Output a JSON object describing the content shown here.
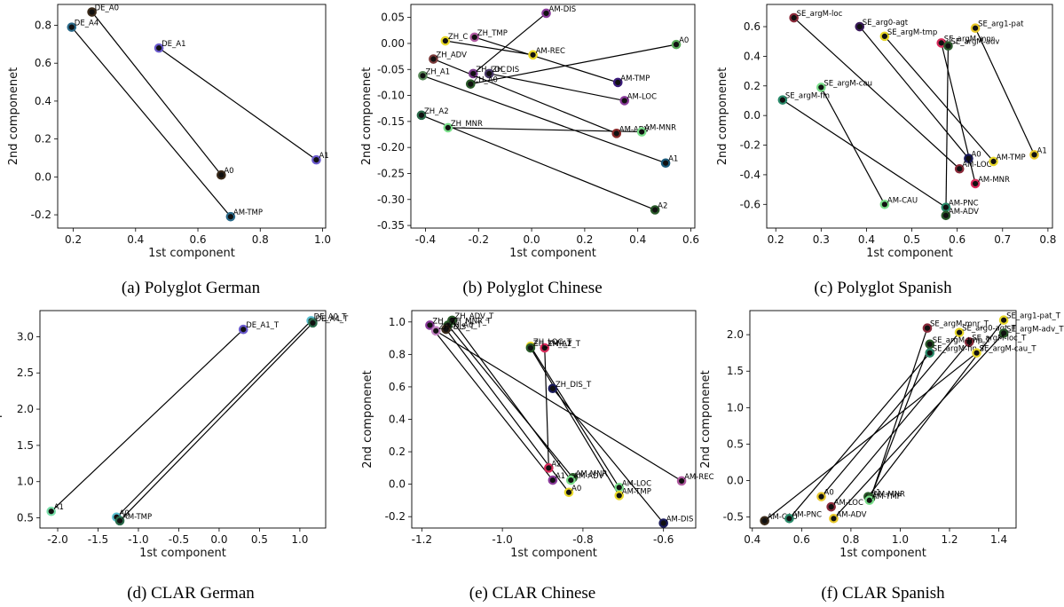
{
  "chart_data": [
    {
      "type": "scatter",
      "caption": "(a) Polyglot German",
      "xlabel": "1st component",
      "ylabel": "2nd componenet",
      "xlim": [
        0.15,
        1.01
      ],
      "ylim": [
        -0.27,
        0.91
      ],
      "xticks": [
        "0.2",
        "0.4",
        "0.6",
        "0.8",
        "1.0"
      ],
      "yticks": [
        "-0.2",
        "0.0",
        "0.2",
        "0.4",
        "0.6",
        "0.8"
      ],
      "points": [
        {
          "label": "DE_A0",
          "x": 0.26,
          "y": 0.87,
          "color": "#3a2a1a"
        },
        {
          "label": "DE_A4",
          "x": 0.195,
          "y": 0.79,
          "color": "#2a6a8a"
        },
        {
          "label": "DE_A1",
          "x": 0.475,
          "y": 0.68,
          "color": "#6a5acd"
        },
        {
          "label": "A0",
          "x": 0.675,
          "y": 0.01,
          "color": "#3a2a1a"
        },
        {
          "label": "A1",
          "x": 0.98,
          "y": 0.09,
          "color": "#6a5acd"
        },
        {
          "label": "AM-TMP",
          "x": 0.705,
          "y": -0.21,
          "color": "#2a6a8a"
        }
      ],
      "links": [
        [
          "DE_A0",
          "A0"
        ],
        [
          "DE_A4",
          "AM-TMP"
        ],
        [
          "DE_A1",
          "A1"
        ]
      ]
    },
    {
      "type": "scatter",
      "caption": "(b) Polyglot Chinese",
      "xlabel": "1st component",
      "ylabel": "2nd componenet",
      "xlim": [
        -0.455,
        0.615
      ],
      "ylim": [
        -0.355,
        0.075
      ],
      "xticks": [
        "-0.4",
        "-0.2",
        "0.0",
        "0.2",
        "0.4",
        "0.6"
      ],
      "yticks": [
        "-0.35",
        "-0.30",
        "-0.25",
        "-0.20",
        "-0.15",
        "-0.10",
        "-0.05",
        "0.00",
        "0.05"
      ],
      "points": [
        {
          "label": "AM-DIS",
          "x": 0.055,
          "y": 0.058,
          "color": "#8a3a9a"
        },
        {
          "label": "ZH_C",
          "x": -0.325,
          "y": 0.005,
          "color": "#e8d82a"
        },
        {
          "label": "ZH_TMP",
          "x": -0.215,
          "y": 0.012,
          "color": "#b05aa0"
        },
        {
          "label": "AM-REC",
          "x": 0.005,
          "y": -0.022,
          "color": "#e8d82a"
        },
        {
          "label": "A0",
          "x": 0.545,
          "y": -0.002,
          "color": "#5aaa5a"
        },
        {
          "label": "ZH_ADV",
          "x": -0.37,
          "y": -0.03,
          "color": "#7a3a3a"
        },
        {
          "label": "ZH_LOC",
          "x": -0.22,
          "y": -0.058,
          "color": "#7a3a8a"
        },
        {
          "label": "ZH_DIS",
          "x": -0.16,
          "y": -0.058,
          "color": "#4a3a6a"
        },
        {
          "label": "ZH_A1",
          "x": -0.41,
          "y": -0.062,
          "color": "#5a8a5a"
        },
        {
          "label": "ZH_A0",
          "x": -0.23,
          "y": -0.078,
          "color": "#2a5a2a"
        },
        {
          "label": "AM-TMP",
          "x": 0.325,
          "y": -0.075,
          "color": "#3a1a7a"
        },
        {
          "label": "AM-LOC",
          "x": 0.35,
          "y": -0.11,
          "color": "#8a3a9a"
        },
        {
          "label": "ZH_A2",
          "x": -0.415,
          "y": -0.138,
          "color": "#2a6a4a"
        },
        {
          "label": "ZH_MNR",
          "x": -0.315,
          "y": -0.162,
          "color": "#7adf8a"
        },
        {
          "label": "AM-ADV",
          "x": 0.32,
          "y": -0.173,
          "color": "#8a2a2a"
        },
        {
          "label": "AM-MNR",
          "x": 0.415,
          "y": -0.17,
          "color": "#7adf8a"
        },
        {
          "label": "A1",
          "x": 0.505,
          "y": -0.23,
          "color": "#1a5a7a"
        },
        {
          "label": "A2",
          "x": 0.465,
          "y": -0.32,
          "color": "#2a5a2a"
        }
      ],
      "links": [
        [
          "ZH_C",
          "AM-REC"
        ],
        [
          "ZH_TMP",
          "AM-TMP"
        ],
        [
          "ZH_ADV",
          "AM-ADV"
        ],
        [
          "ZH_LOC",
          "AM-DIS"
        ],
        [
          "ZH_DIS",
          "AM-LOC"
        ],
        [
          "ZH_A1",
          "A1"
        ],
        [
          "ZH_A0",
          "A0"
        ],
        [
          "ZH_A2",
          "A2"
        ],
        [
          "ZH_MNR",
          "AM-MNR"
        ]
      ]
    },
    {
      "type": "scatter",
      "caption": "(c) Polyglot Spanish",
      "xlabel": "1st component",
      "ylabel": "2nd componenet",
      "xlim": [
        0.18,
        0.81
      ],
      "ylim": [
        -0.76,
        0.75
      ],
      "xticks": [
        "0.2",
        "0.3",
        "0.4",
        "0.5",
        "0.6",
        "0.7",
        "0.8"
      ],
      "yticks": [
        "-0.6",
        "-0.4",
        "-0.2",
        "0.0",
        "0.2",
        "0.4",
        "0.6"
      ],
      "points": [
        {
          "label": "SE_argM-loc",
          "x": 0.24,
          "y": 0.66,
          "color": "#8a2a3a"
        },
        {
          "label": "SE_arg0-agt",
          "x": 0.385,
          "y": 0.6,
          "color": "#3a1a5a"
        },
        {
          "label": "SE_argM-tmp",
          "x": 0.44,
          "y": 0.535,
          "color": "#e8d82a"
        },
        {
          "label": "SE_arg1-pat",
          "x": 0.64,
          "y": 0.59,
          "color": "#e8c82a"
        },
        {
          "label": "SE_argM-mnr",
          "x": 0.565,
          "y": 0.49,
          "color": "#d82a5a"
        },
        {
          "label": "SE_argM-adv",
          "x": 0.58,
          "y": 0.47,
          "color": "#2a5a2a"
        },
        {
          "label": "SE_argM-cau",
          "x": 0.3,
          "y": 0.19,
          "color": "#7adf8a"
        },
        {
          "label": "SE_argM-fin",
          "x": 0.215,
          "y": 0.105,
          "color": "#2a8a6a"
        },
        {
          "label": "A0",
          "x": 0.625,
          "y": -0.29,
          "color": "#1a1a5a"
        },
        {
          "label": "AM-LOC",
          "x": 0.605,
          "y": -0.36,
          "color": "#8a2a3a"
        },
        {
          "label": "AM-TMP",
          "x": 0.68,
          "y": -0.31,
          "color": "#e8d82a"
        },
        {
          "label": "A1",
          "x": 0.77,
          "y": -0.265,
          "color": "#e8c82a"
        },
        {
          "label": "AM-MNR",
          "x": 0.64,
          "y": -0.46,
          "color": "#d82a5a"
        },
        {
          "label": "AM-CAU",
          "x": 0.44,
          "y": -0.6,
          "color": "#7adf8a"
        },
        {
          "label": "AM-PNC",
          "x": 0.575,
          "y": -0.62,
          "color": "#2a8a6a"
        },
        {
          "label": "AM-ADV",
          "x": 0.575,
          "y": -0.675,
          "color": "#2a5a2a"
        }
      ],
      "links": [
        [
          "SE_argM-loc",
          "AM-LOC"
        ],
        [
          "SE_arg0-agt",
          "A0"
        ],
        [
          "SE_argM-tmp",
          "AM-TMP"
        ],
        [
          "SE_arg1-pat",
          "A1"
        ],
        [
          "SE_argM-mnr",
          "AM-MNR"
        ],
        [
          "SE_argM-adv",
          "AM-ADV"
        ],
        [
          "SE_argM-cau",
          "AM-CAU"
        ],
        [
          "SE_argM-fin",
          "AM-PNC"
        ]
      ]
    },
    {
      "type": "scatter",
      "caption": "(d) CLAR German",
      "xlabel": "1st component",
      "ylabel": "2nd componenet",
      "xlim": [
        -2.22,
        1.32
      ],
      "ylim": [
        0.36,
        3.36
      ],
      "xticks": [
        "-2.0",
        "-1.5",
        "-1.0",
        "-0.5",
        "0.0",
        "0.5",
        "1.0"
      ],
      "yticks": [
        "0.5",
        "1.0",
        "1.5",
        "2.0",
        "2.5",
        "3.0"
      ],
      "points": [
        {
          "label": "DE_A1_T",
          "x": 0.3,
          "y": 3.1,
          "color": "#6a5acd"
        },
        {
          "label": "DE_A0_T",
          "x": 1.14,
          "y": 3.22,
          "color": "#5abfcf"
        },
        {
          "label": "DE_A4_T",
          "x": 1.16,
          "y": 3.19,
          "color": "#2a6a4a"
        },
        {
          "label": "A1",
          "x": -2.08,
          "y": 0.59,
          "color": "#7adfaa"
        },
        {
          "label": "A0",
          "x": -1.27,
          "y": 0.51,
          "color": "#5abfcf"
        },
        {
          "label": "AM-TMP",
          "x": -1.23,
          "y": 0.46,
          "color": "#2a6a4a"
        }
      ],
      "links": [
        [
          "DE_A1_T",
          "A1"
        ],
        [
          "DE_A0_T",
          "A0"
        ],
        [
          "DE_A4_T",
          "AM-TMP"
        ]
      ]
    },
    {
      "type": "scatter",
      "caption": "(e) CLAR Chinese",
      "xlabel": "1st component",
      "ylabel": "2nd componenet",
      "xlim": [
        -1.225,
        -0.52
      ],
      "ylim": [
        -0.27,
        1.07
      ],
      "xticks": [
        "-1.2",
        "-1.0",
        "-0.8",
        "-0.6"
      ],
      "yticks": [
        "-0.2",
        "0.0",
        "0.2",
        "0.4",
        "0.6",
        "0.8",
        "1.0"
      ],
      "points": [
        {
          "label": "ZH_A",
          "x": -1.18,
          "y": 0.98,
          "color": "#8a3a9a"
        },
        {
          "label": "ZH_ADV_T",
          "x": -1.125,
          "y": 1.01,
          "color": "#2a5a2a"
        },
        {
          "label": "ZH_MNR_T",
          "x": -1.135,
          "y": 0.98,
          "color": "#2a5a2a"
        },
        {
          "label": "ZH_A0_T",
          "x": -1.14,
          "y": 0.955,
          "color": "#3a2a1a"
        },
        {
          "label": "ZH_DIS_T",
          "x": -1.165,
          "y": 0.945,
          "color": "#c080c0"
        },
        {
          "label": "ZH_LOC_T",
          "x": -0.93,
          "y": 0.85,
          "color": "#e8d82a"
        },
        {
          "label": "ZH_A2_T",
          "x": -0.895,
          "y": 0.84,
          "color": "#d82a5a"
        },
        {
          "label": "ZH_TMP_T",
          "x": -0.93,
          "y": 0.84,
          "color": "#2a5a2a"
        },
        {
          "label": "ZH_DIS_T",
          "x": -0.875,
          "y": 0.59,
          "color": "#1a1a5a"
        },
        {
          "label": "A2",
          "x": -0.885,
          "y": 0.1,
          "color": "#d82a5a"
        },
        {
          "label": "AM-MNR",
          "x": -0.825,
          "y": 0.04,
          "color": "#2a5a2a"
        },
        {
          "label": "AM-ADV",
          "x": -0.83,
          "y": 0.025,
          "color": "#7adf8a"
        },
        {
          "label": "A1",
          "x": -0.875,
          "y": 0.025,
          "color": "#8a3a9a"
        },
        {
          "label": "A0",
          "x": -0.835,
          "y": -0.05,
          "color": "#e8d82a"
        },
        {
          "label": "AM-LOC",
          "x": -0.71,
          "y": -0.02,
          "color": "#7adf8a"
        },
        {
          "label": "AM-TMP",
          "x": -0.71,
          "y": -0.07,
          "color": "#e8d82a"
        },
        {
          "label": "AM-REC",
          "x": -0.555,
          "y": 0.02,
          "color": "#b05aa0"
        },
        {
          "label": "AM-DIS",
          "x": -0.6,
          "y": -0.24,
          "color": "#1a1a5a"
        }
      ],
      "links": [
        [
          0,
          12
        ],
        [
          1,
          11
        ],
        [
          2,
          10
        ],
        [
          3,
          13
        ],
        [
          4,
          16
        ],
        [
          5,
          14
        ],
        [
          6,
          9
        ],
        [
          7,
          15
        ],
        [
          8,
          17
        ]
      ]
    },
    {
      "type": "scatter",
      "caption": "(f) CLAR Spanish",
      "xlabel": "1st component",
      "ylabel": "2nd componenet",
      "xlim": [
        0.39,
        1.47
      ],
      "ylim": [
        -0.65,
        2.33
      ],
      "xticks": [
        "0.4",
        "0.6",
        "0.8",
        "1.0",
        "1.2",
        "1.4"
      ],
      "yticks": [
        "-0.5",
        "0.0",
        "0.5",
        "1.0",
        "1.5",
        "2.0"
      ],
      "points": [
        {
          "label": "SE_arg1-pat_T",
          "x": 1.42,
          "y": 2.2,
          "color": "#e8d82a"
        },
        {
          "label": "SE_argM-mnr_T",
          "x": 1.11,
          "y": 2.09,
          "color": "#8a2a3a"
        },
        {
          "label": "SE_arg0-agt_T",
          "x": 1.24,
          "y": 2.03,
          "color": "#e8d82a"
        },
        {
          "label": "SE_argM-adv_T",
          "x": 1.42,
          "y": 2.02,
          "color": "#2a5a2a"
        },
        {
          "label": "SE_argM-loc_T",
          "x": 1.28,
          "y": 1.9,
          "color": "#8a2a3a"
        },
        {
          "label": "SE_argM-tmp_T",
          "x": 1.12,
          "y": 1.87,
          "color": "#2a5a2a"
        },
        {
          "label": "SE_argM-fin_T",
          "x": 1.12,
          "y": 1.75,
          "color": "#2a8a6a"
        },
        {
          "label": "SE_argM-cau_T",
          "x": 1.31,
          "y": 1.75,
          "color": "#e8d82a"
        },
        {
          "label": "A0",
          "x": 0.68,
          "y": -0.22,
          "color": "#e8c82a"
        },
        {
          "label": "A1",
          "x": 0.87,
          "y": -0.22,
          "color": "#2a5a2a"
        },
        {
          "label": "AM-MNR",
          "x": 0.88,
          "y": -0.24,
          "color": "#2a5a2a"
        },
        {
          "label": "AM-TMP",
          "x": 0.875,
          "y": -0.27,
          "color": "#7adf8a"
        },
        {
          "label": "AM-LOC",
          "x": 0.72,
          "y": -0.36,
          "color": "#8a2a3a"
        },
        {
          "label": "AM-CAU",
          "x": 0.45,
          "y": -0.55,
          "color": "#3a2a1a"
        },
        {
          "label": "AM-PNC",
          "x": 0.55,
          "y": -0.52,
          "color": "#2a8a6a"
        },
        {
          "label": "AM-ADV",
          "x": 0.73,
          "y": -0.52,
          "color": "#e8c82a"
        }
      ],
      "links": [
        [
          0,
          9
        ],
        [
          1,
          10
        ],
        [
          2,
          8
        ],
        [
          3,
          15
        ],
        [
          4,
          12
        ],
        [
          5,
          11
        ],
        [
          6,
          14
        ],
        [
          7,
          13
        ]
      ]
    }
  ]
}
